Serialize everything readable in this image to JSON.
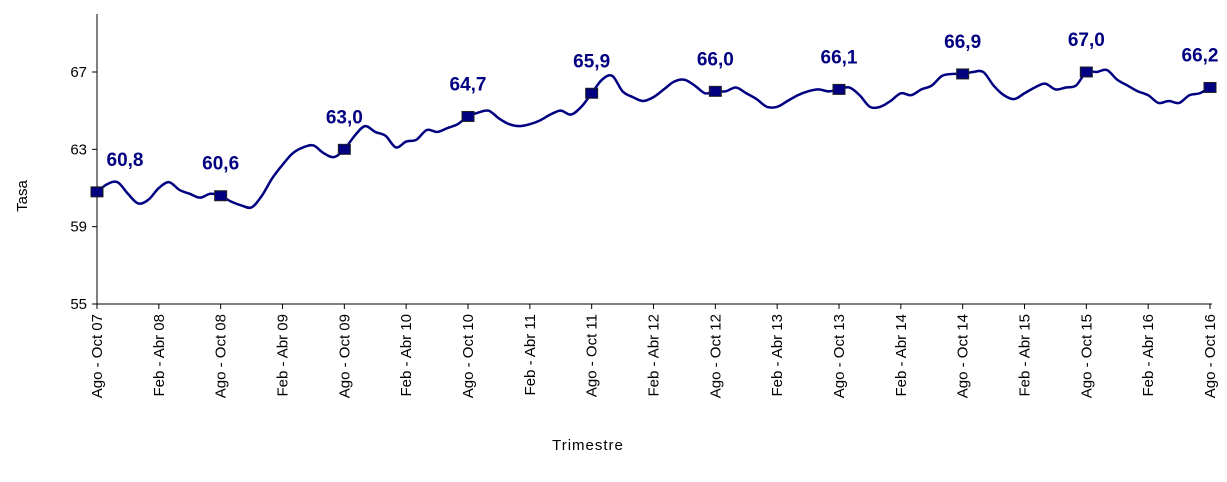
{
  "chart_data": {
    "type": "line",
    "y_label": "Tasa",
    "x_label": "Trimestre",
    "categories": [
      "Ago - Oct 07",
      null,
      null,
      null,
      null,
      null,
      "Feb - Abr 08",
      null,
      null,
      null,
      null,
      null,
      "Ago - Oct 08",
      null,
      null,
      null,
      null,
      null,
      "Feb - Abr 09",
      null,
      null,
      null,
      null,
      null,
      "Ago - Oct 09",
      null,
      null,
      null,
      null,
      null,
      "Feb - Abr 10",
      null,
      null,
      null,
      null,
      null,
      "Ago - Oct 10",
      null,
      null,
      null,
      null,
      null,
      "Feb - Abr 11",
      null,
      null,
      null,
      null,
      null,
      "Ago - Oct 11",
      null,
      null,
      null,
      null,
      null,
      "Feb - Abr 12",
      null,
      null,
      null,
      null,
      null,
      "Ago - Oct 12",
      null,
      null,
      null,
      null,
      null,
      "Feb - Abr 13",
      null,
      null,
      null,
      null,
      null,
      "Ago - Oct 13",
      null,
      null,
      null,
      null,
      null,
      "Feb - Abr 14",
      null,
      null,
      null,
      null,
      null,
      "Ago - Oct 14",
      null,
      null,
      null,
      null,
      null,
      "Feb - Abr 15",
      null,
      null,
      null,
      null,
      null,
      "Ago - Oct 15",
      null,
      null,
      null,
      null,
      null,
      "Feb - Abr 16",
      null,
      null,
      null,
      null,
      null,
      "Ago - Oct 16"
    ],
    "series": [
      {
        "color": "#000080",
        "values": [
          60.8,
          61.2,
          61.3,
          60.7,
          60.2,
          60.4,
          61.0,
          61.3,
          60.9,
          60.7,
          60.5,
          60.7,
          60.6,
          60.3,
          60.1,
          60.0,
          60.6,
          61.5,
          62.2,
          62.8,
          63.1,
          63.2,
          62.8,
          62.6,
          63.0,
          63.7,
          64.2,
          63.9,
          63.7,
          63.1,
          63.4,
          63.5,
          64.0,
          63.9,
          64.1,
          64.3,
          64.7,
          64.9,
          65.0,
          64.6,
          64.3,
          64.2,
          64.3,
          64.5,
          64.8,
          65.0,
          64.8,
          65.2,
          65.9,
          66.6,
          66.8,
          66.0,
          65.7,
          65.5,
          65.7,
          66.1,
          66.5,
          66.6,
          66.3,
          65.9,
          66.0,
          66.0,
          66.2,
          65.9,
          65.6,
          65.2,
          65.2,
          65.5,
          65.8,
          66.0,
          66.1,
          66.0,
          66.1,
          66.2,
          65.8,
          65.2,
          65.2,
          65.5,
          65.9,
          65.8,
          66.1,
          66.3,
          66.8,
          66.9,
          66.9,
          67.0,
          67.0,
          66.3,
          65.8,
          65.6,
          65.9,
          66.2,
          66.4,
          66.1,
          66.2,
          66.3,
          67.0,
          67.0,
          67.1,
          66.6,
          66.3,
          66.0,
          65.8,
          65.4,
          65.5,
          65.4,
          65.8,
          65.9,
          66.2
        ],
        "value_labels": [
          "60,8",
          null,
          null,
          null,
          null,
          null,
          null,
          null,
          null,
          null,
          null,
          null,
          "60,6",
          null,
          null,
          null,
          null,
          null,
          null,
          null,
          null,
          null,
          null,
          null,
          "63,0",
          null,
          null,
          null,
          null,
          null,
          null,
          null,
          null,
          null,
          null,
          null,
          "64,7",
          null,
          null,
          null,
          null,
          null,
          null,
          null,
          null,
          null,
          null,
          null,
          "65,9",
          null,
          null,
          null,
          null,
          null,
          null,
          null,
          null,
          null,
          null,
          null,
          "66,0",
          null,
          null,
          null,
          null,
          null,
          null,
          null,
          null,
          null,
          null,
          null,
          "66,1",
          null,
          null,
          null,
          null,
          null,
          null,
          null,
          null,
          null,
          null,
          null,
          "66,9",
          null,
          null,
          null,
          null,
          null,
          null,
          null,
          null,
          null,
          null,
          null,
          "67,0",
          null,
          null,
          null,
          null,
          null,
          null,
          null,
          null,
          null,
          null,
          null,
          "66,2"
        ]
      }
    ],
    "ylim": [
      55,
      70
    ],
    "yticks": [
      55,
      59,
      63,
      67
    ],
    "grid": false
  }
}
